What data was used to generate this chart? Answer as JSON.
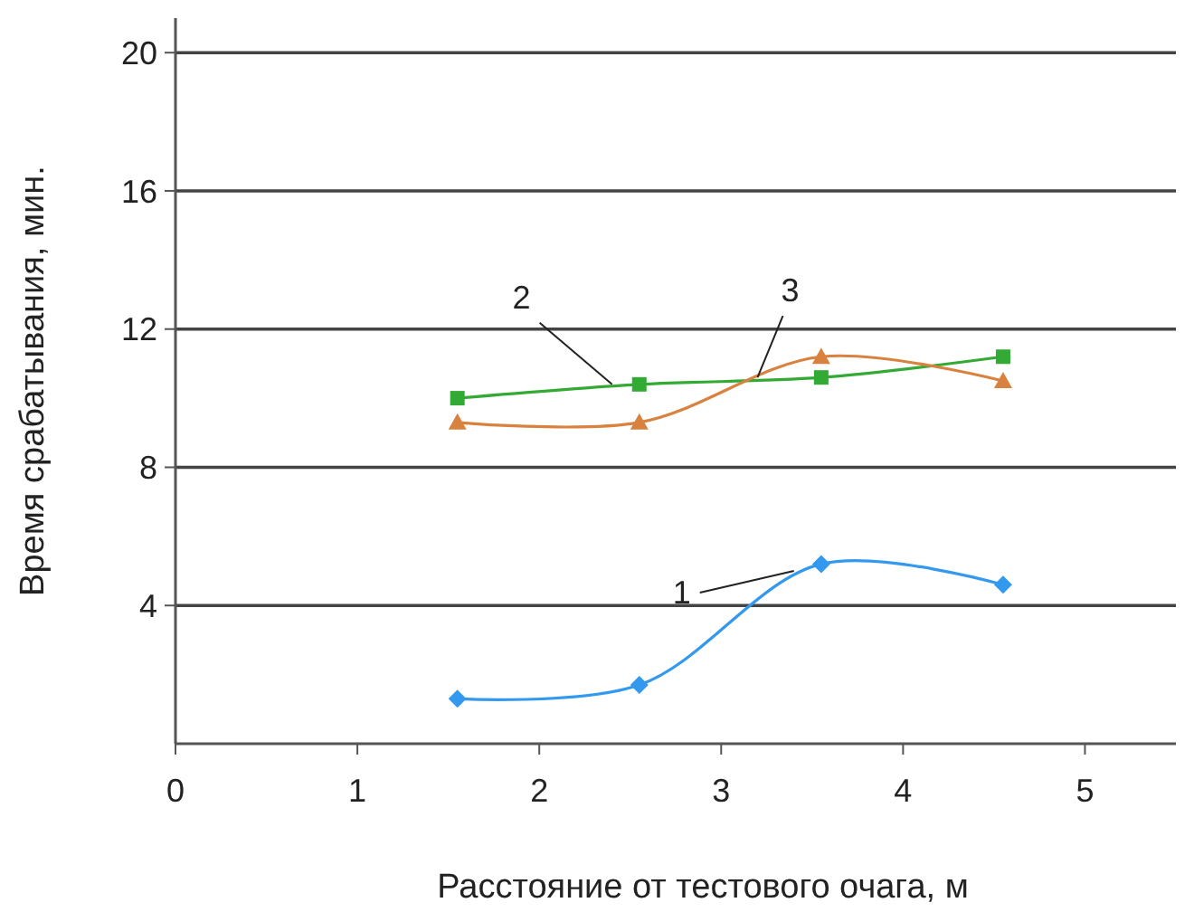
{
  "chart_data": {
    "type": "line",
    "xlabel": "Расстояние от тестового очага, м",
    "ylabel": "Время срабатывания, мин.",
    "xlim": [
      0,
      5.5
    ],
    "xticks": [
      0,
      1,
      2,
      3,
      4,
      5
    ],
    "ylim": [
      0,
      21
    ],
    "yticks": [
      4,
      8,
      12,
      16,
      20
    ],
    "grid": "y",
    "series": [
      {
        "color": "#3399ee",
        "marker": "diamond",
        "x": [
          1.55,
          2.55,
          3.55,
          4.55
        ],
        "values": [
          1.3,
          1.7,
          5.2,
          4.6
        ]
      },
      {
        "color": "#33aa33",
        "marker": "square",
        "x": [
          1.55,
          2.55,
          3.55,
          4.55
        ],
        "values": [
          10.0,
          10.4,
          10.6,
          11.2
        ]
      },
      {
        "color": "#d9823f",
        "marker": "triangle",
        "x": [
          1.55,
          2.55,
          3.55,
          4.55
        ],
        "values": [
          9.3,
          9.3,
          11.2,
          10.5
        ]
      }
    ],
    "annotations": [
      {
        "text": "1",
        "x": 3.4,
        "y": 5.0
      },
      {
        "text": "2",
        "x": 2.4,
        "y": 10.4
      },
      {
        "text": "3",
        "x": 3.2,
        "y": 10.6
      }
    ]
  }
}
